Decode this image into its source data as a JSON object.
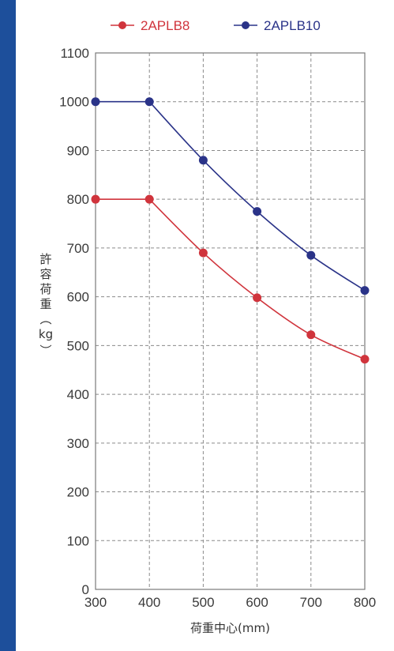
{
  "colors": {
    "edge_bar": "#1d4f9b",
    "grid": "#8a8a8a",
    "axis": "#7a7a7a"
  },
  "chart_data": {
    "type": "line",
    "xlabel": "荷重中心(mm)",
    "ylabel_chars": [
      "許",
      "容",
      "荷",
      "重",
      "︵",
      "kg",
      "︶"
    ],
    "x_ticks": [
      300,
      400,
      500,
      600,
      700,
      800
    ],
    "y_ticks": [
      0,
      100,
      200,
      300,
      400,
      500,
      600,
      700,
      800,
      900,
      1000,
      1100
    ],
    "xlim": [
      300,
      800
    ],
    "ylim": [
      0,
      1100
    ],
    "grid": true,
    "legend_position": "top",
    "series": [
      {
        "name": "2APLB8",
        "color": "#d0343c",
        "x": [
          300,
          400,
          500,
          600,
          700,
          800
        ],
        "y": [
          800,
          800,
          690,
          598,
          522,
          472
        ]
      },
      {
        "name": "2APLB10",
        "color": "#2a3388",
        "x": [
          300,
          400,
          500,
          600,
          700,
          800
        ],
        "y": [
          1000,
          1000,
          880,
          775,
          685,
          613
        ]
      }
    ]
  }
}
